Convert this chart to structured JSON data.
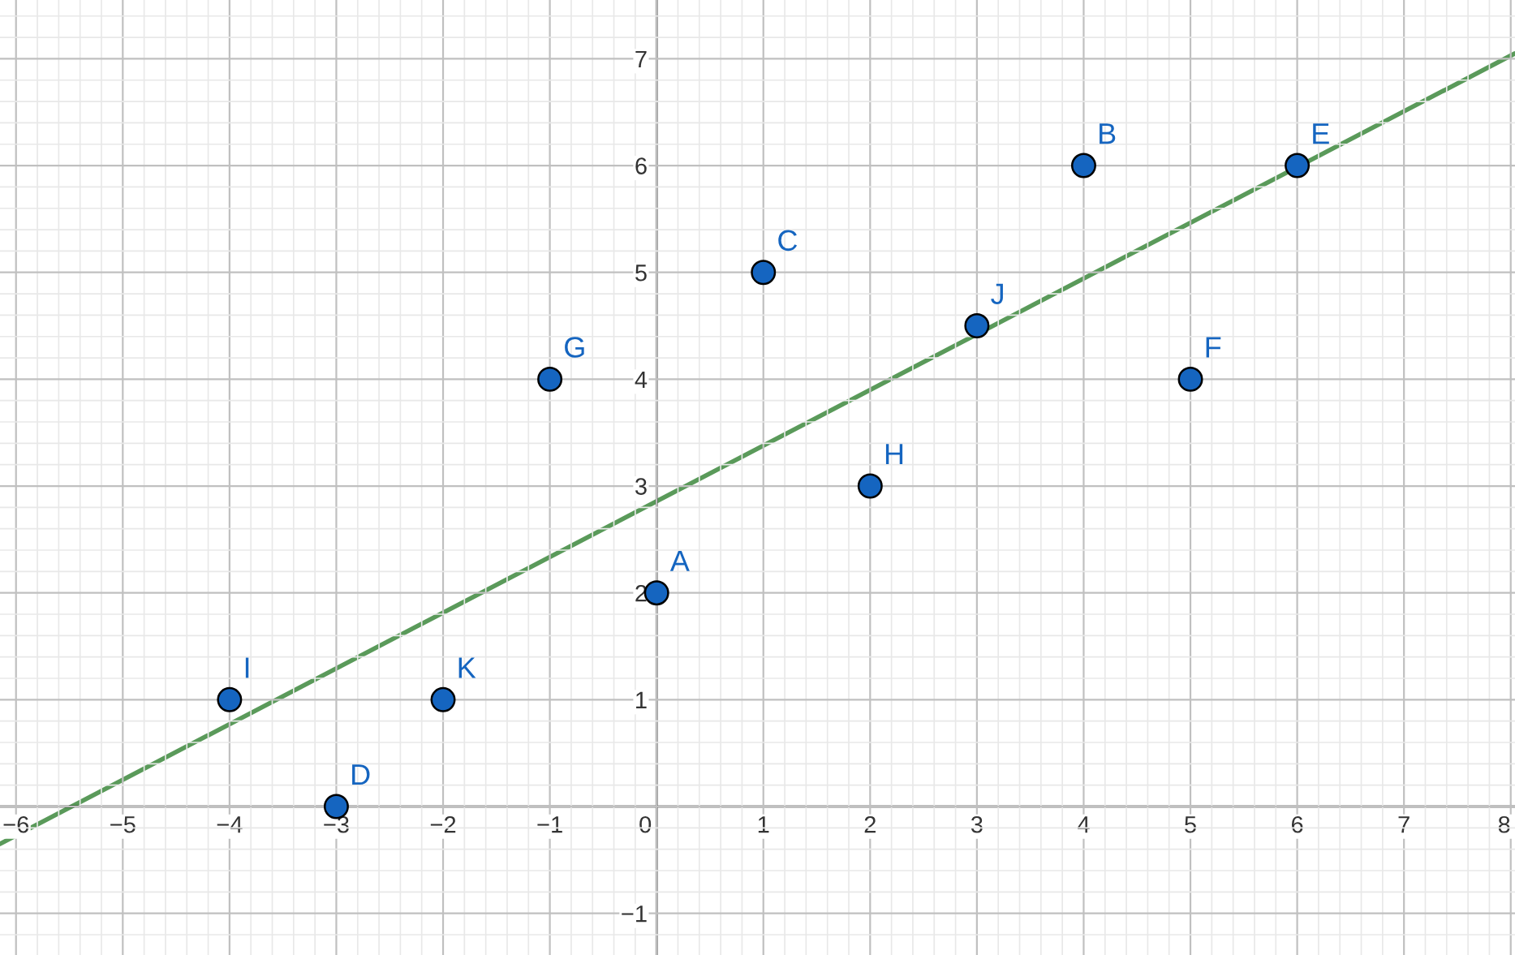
{
  "chart_data": {
    "type": "scatter",
    "x": [
      0,
      4,
      1,
      -3,
      6,
      5,
      -1,
      2,
      -4,
      3,
      -2
    ],
    "series": [
      {
        "color": "#1565c0",
        "values": [
          2,
          6,
          5,
          0,
          6,
          4,
          4,
          3,
          1,
          4.5,
          1
        ],
        "marker": "circle"
      },
      {
        "type": "line",
        "color": "#5a9a5a",
        "x": [
          -6.15,
          8.04
        ],
        "values": [
          -0.35,
          7.05
        ],
        "line_style": "solid"
      }
    ],
    "annotations": [
      {
        "text": "A",
        "x": 0,
        "y": 2
      },
      {
        "text": "B",
        "x": 4,
        "y": 6
      },
      {
        "text": "C",
        "x": 1,
        "y": 5
      },
      {
        "text": "D",
        "x": -3,
        "y": 0
      },
      {
        "text": "E",
        "x": 6,
        "y": 6
      },
      {
        "text": "F",
        "x": 5,
        "y": 4
      },
      {
        "text": "G",
        "x": -1,
        "y": 4
      },
      {
        "text": "H",
        "x": 2,
        "y": 3
      },
      {
        "text": "I",
        "x": -4,
        "y": 1
      },
      {
        "text": "J",
        "x": 3,
        "y": 4.5
      },
      {
        "text": "K",
        "x": -2,
        "y": 1
      }
    ],
    "xlim": [
      -6.15,
      8.04
    ],
    "ylim": [
      -1.39,
      7.55
    ],
    "xticks": [
      {
        "value": -6,
        "label": "−6"
      },
      {
        "value": -5,
        "label": "−5"
      },
      {
        "value": -4,
        "label": "−4"
      },
      {
        "value": -3,
        "label": "−3"
      },
      {
        "value": -2,
        "label": "−2"
      },
      {
        "value": -1,
        "label": "−1"
      },
      0,
      1,
      2,
      3,
      4,
      5,
      6,
      7,
      8
    ],
    "yticks": [
      {
        "value": -1,
        "label": "−1"
      },
      {
        "value": 0,
        "label": null
      },
      1,
      2,
      3,
      4,
      5,
      6,
      7
    ],
    "grid": true
  }
}
